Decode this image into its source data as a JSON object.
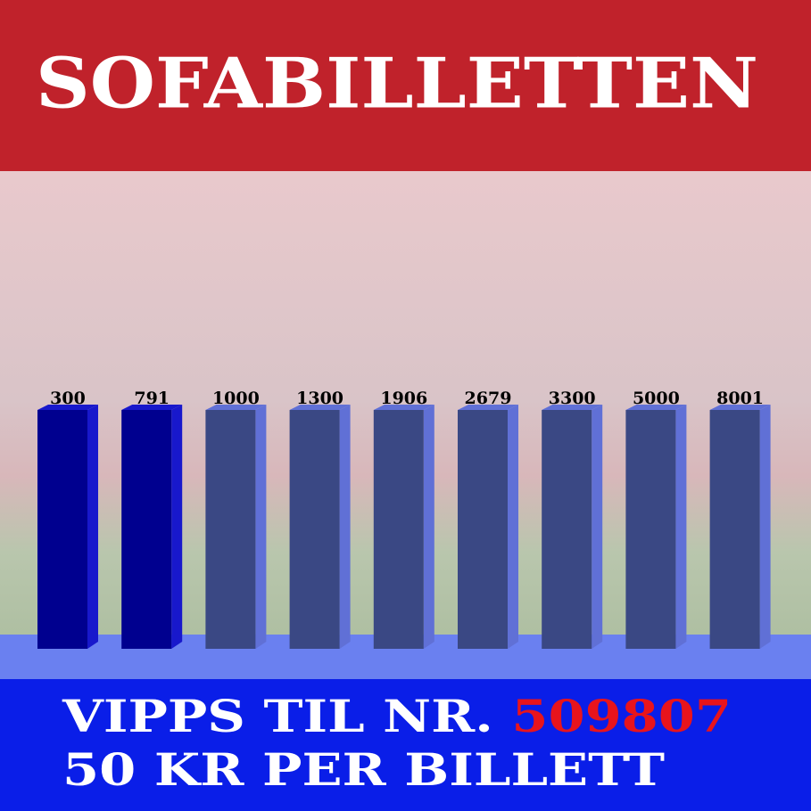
{
  "header": {
    "title": "SOFABILLETTEN"
  },
  "milestones": [
    {
      "value": 300,
      "color": "#00008f",
      "side_color": "#1818cc"
    },
    {
      "value": 791,
      "color": "#00008f",
      "side_color": "#1818cc"
    },
    {
      "value": 1000,
      "color": "#3a4884",
      "side_color": "#6070d6"
    },
    {
      "value": 1300,
      "color": "#3a4884",
      "side_color": "#6070d6"
    },
    {
      "value": 1906,
      "color": "#3a4884",
      "side_color": "#6070d6"
    },
    {
      "value": 2679,
      "color": "#3a4884",
      "side_color": "#6070d6"
    },
    {
      "value": 3300,
      "color": "#3a4884",
      "side_color": "#6070d6"
    },
    {
      "value": 5000,
      "color": "#3a4884",
      "side_color": "#6070d6"
    },
    {
      "value": 8001,
      "color": "#3a4884",
      "side_color": "#6070d6"
    }
  ],
  "footer": {
    "line1_text": "VIPPS TIL NR.",
    "line1_number": "509807",
    "line2": "50 KR PER BILLETT"
  }
}
